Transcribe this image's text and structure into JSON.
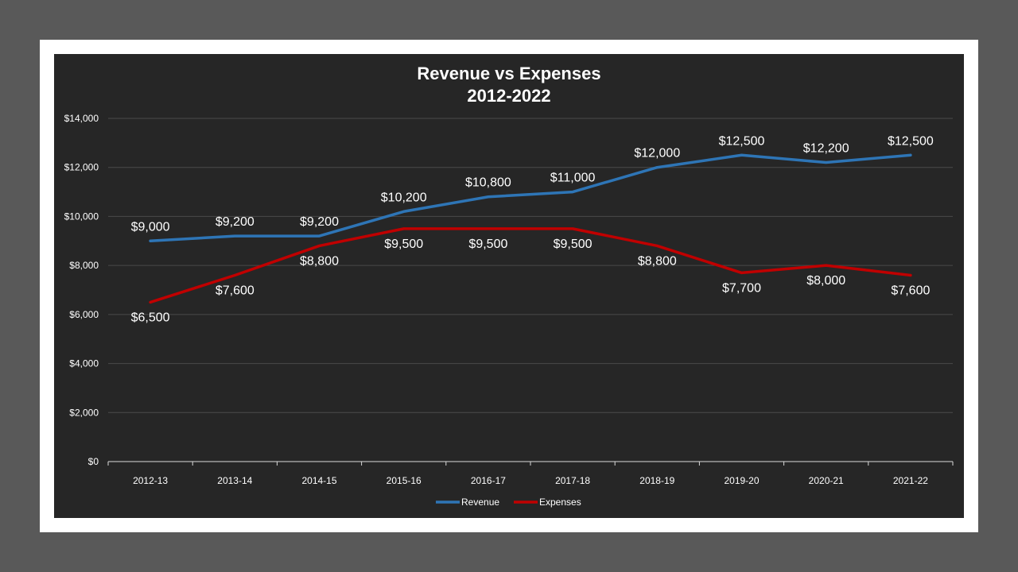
{
  "chart_data": {
    "type": "line",
    "title": "Revenue vs Expenses",
    "subtitle": "2012-2022",
    "xlabel": "",
    "ylabel": "",
    "categories": [
      "2012-13",
      "2013-14",
      "2014-15",
      "2015-16",
      "2016-17",
      "2017-18",
      "2018-19",
      "2019-20",
      "2020-21",
      "2021-22"
    ],
    "ylim": [
      0,
      14000
    ],
    "yticks": [
      0,
      2000,
      4000,
      6000,
      8000,
      10000,
      12000,
      14000
    ],
    "ytick_labels": [
      "$0",
      "$2,000",
      "$4,000",
      "$6,000",
      "$8,000",
      "$10,000",
      "$12,000",
      "$14,000"
    ],
    "grid": true,
    "legend_position": "bottom",
    "background_color": "#262626",
    "series": [
      {
        "name": "Revenue",
        "color": "#2E75B6",
        "values": [
          9000,
          9200,
          9200,
          10200,
          10800,
          11000,
          12000,
          12500,
          12200,
          12500
        ],
        "labels": [
          "$9,000",
          "$9,200",
          "$9,200",
          "$10,200",
          "$10,800",
          "$11,000",
          "$12,000",
          "$12,500",
          "$12,200",
          "$12,500"
        ]
      },
      {
        "name": "Expenses",
        "color": "#C00000",
        "values": [
          6500,
          7600,
          8800,
          9500,
          9500,
          9500,
          8800,
          7700,
          8000,
          7600
        ],
        "labels": [
          "$6,500",
          "$7,600",
          "$8,800",
          "$9,500",
          "$9,500",
          "$9,500",
          "$8,800",
          "$7,700",
          "$8,000",
          "$7,600"
        ]
      }
    ]
  }
}
